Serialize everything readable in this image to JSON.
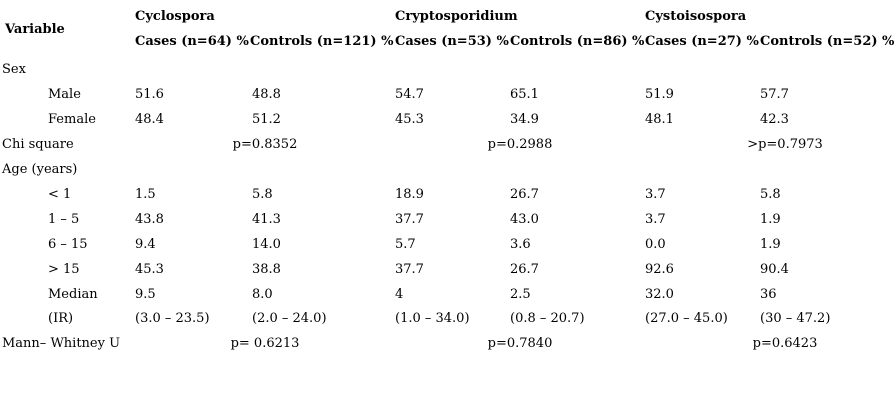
{
  "page": {
    "background_color": "#ffffff",
    "text_color": "#000000"
  },
  "header": {
    "variable_label": "Variable",
    "groups": [
      {
        "name": "Cyclospora",
        "cases": "Cases (n=64) %",
        "controls": "Controls (n=121) %"
      },
      {
        "name": "Cryptosporidium",
        "cases": "Cases (n=53) %",
        "controls": "Controls (n=86) %"
      },
      {
        "name": "Cystoisospora",
        "cases": "Cases (n=27) %",
        "controls": "Controls (n=52) %"
      }
    ]
  },
  "rows": [
    {
      "type": "section",
      "indent": false,
      "label": "Sex"
    },
    {
      "type": "data",
      "indent": true,
      "label": "Male",
      "values": [
        "51.6",
        "48.8",
        "54.7",
        "65.1",
        "51.9",
        "57.7"
      ]
    },
    {
      "type": "data",
      "indent": true,
      "label": "Female",
      "values": [
        "48.4",
        "51.2",
        "45.3",
        "34.9",
        "48.1",
        "42.3"
      ]
    },
    {
      "type": "pvalues",
      "indent": false,
      "label": "Chi square",
      "values": [
        "p=0.8352",
        "p=0.2988",
        ">p=0.7973"
      ]
    },
    {
      "type": "section",
      "indent": false,
      "label": "Age (years)"
    },
    {
      "type": "data",
      "indent": true,
      "label": "< 1",
      "values": [
        "1.5",
        "5.8",
        "18.9",
        "26.7",
        "3.7",
        "5.8"
      ]
    },
    {
      "type": "data",
      "indent": true,
      "label": "1 – 5",
      "values": [
        "43.8",
        "41.3",
        "37.7",
        "43.0",
        "3.7",
        "1.9"
      ]
    },
    {
      "type": "data",
      "indent": true,
      "label": "6 – 15",
      "values": [
        "9.4",
        "14.0",
        "5.7",
        "3.6",
        "0.0",
        "1.9"
      ]
    },
    {
      "type": "data",
      "indent": true,
      "label": "> 15",
      "values": [
        "45.3",
        "38.8",
        "37.7",
        "26.7",
        "92.6",
        "90.4"
      ]
    },
    {
      "type": "data",
      "indent": true,
      "label": "Median",
      "values": [
        "9.5",
        "8.0",
        "4",
        "2.5",
        "32.0",
        "36"
      ]
    },
    {
      "type": "data",
      "indent": true,
      "label": "(IR)",
      "values": [
        "(3.0 – 23.5)",
        "(2.0 – 24.0)",
        "(1.0 – 34.0)",
        "(0.8 – 20.7)",
        "(27.0 – 45.0)",
        "(30 – 47.2)"
      ]
    },
    {
      "type": "pvalues",
      "indent": false,
      "label": "Mann– Whitney U",
      "values": [
        "p= 0.6213",
        "p=0.7840",
        "p=0.6423"
      ]
    }
  ]
}
